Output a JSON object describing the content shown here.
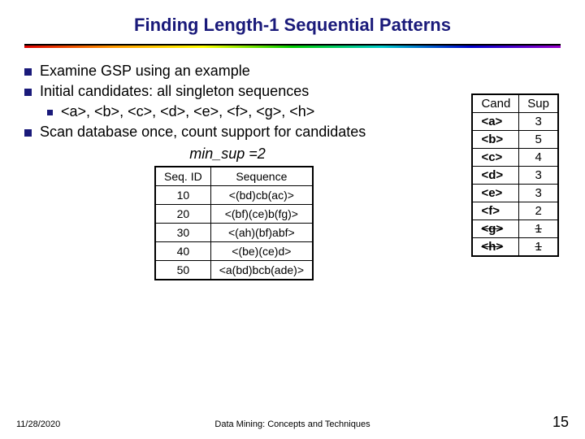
{
  "title": "Finding Length-1 Sequential Patterns",
  "bullets": {
    "b1": "Examine GSP using an example",
    "b2": "Initial candidates: all singleton sequences",
    "b2sub": "<a>, <b>, <c>, <d>, <e>, <f>, <g>, <h>",
    "b3": "Scan database once, count support for candidates"
  },
  "minsup": "min_sup =2",
  "seq_table": {
    "headers": [
      "Seq. ID",
      "Sequence"
    ],
    "rows": [
      [
        "10",
        "<(bd)cb(ac)>"
      ],
      [
        "20",
        "<(bf)(ce)b(fg)>"
      ],
      [
        "30",
        "<(ah)(bf)abf>"
      ],
      [
        "40",
        "<(be)(ce)d>"
      ],
      [
        "50",
        "<a(bd)bcb(ade)>"
      ]
    ]
  },
  "cand_table": {
    "headers": [
      "Cand",
      "Sup"
    ],
    "rows": [
      {
        "c": "<a>",
        "s": "3",
        "struck": false
      },
      {
        "c": "<b>",
        "s": "5",
        "struck": false
      },
      {
        "c": "<c>",
        "s": "4",
        "struck": false
      },
      {
        "c": "<d>",
        "s": "3",
        "struck": false
      },
      {
        "c": "<e>",
        "s": "3",
        "struck": false
      },
      {
        "c": "<f>",
        "s": "2",
        "struck": false
      },
      {
        "c": "<g>",
        "s": "1",
        "struck": true
      },
      {
        "c": "<h>",
        "s": "1",
        "struck": true
      }
    ]
  },
  "footer": {
    "date": "11/28/2020",
    "center": "Data Mining: Concepts and Techniques",
    "page": "15"
  },
  "colors": {
    "title": "#1a1a7a",
    "bullet": "#1a1a7a",
    "background": "#ffffff",
    "border": "#000000"
  }
}
